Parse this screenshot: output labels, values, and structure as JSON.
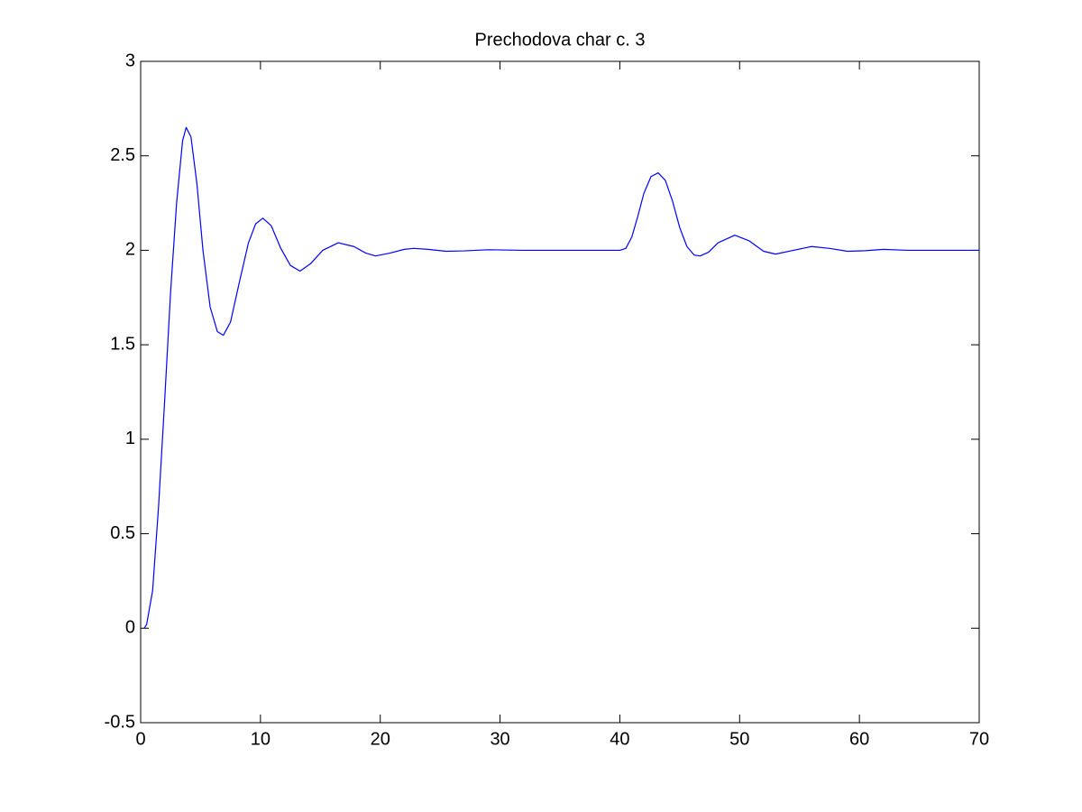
{
  "chart_data": {
    "type": "line",
    "title": "Prechodova char c. 3",
    "x": [
      0.3,
      0.5,
      1,
      1.5,
      2,
      2.5,
      3,
      3.5,
      3.8,
      4.2,
      4.7,
      5.2,
      5.8,
      6.4,
      6.9,
      7.5,
      8.2,
      9,
      9.6,
      10.2,
      10.9,
      11.7,
      12.5,
      13.3,
      14.2,
      15.2,
      16.5,
      17.8,
      18.8,
      19.6,
      20.8,
      22,
      22.8,
      24,
      25.5,
      27,
      29,
      32,
      36,
      40,
      40.5,
      41,
      41.5,
      42,
      42.6,
      43.2,
      43.8,
      44.4,
      45,
      45.6,
      46.2,
      46.7,
      47.4,
      48.2,
      49.6,
      50.8,
      52,
      53,
      54.5,
      56,
      57.5,
      59,
      60.5,
      62,
      64,
      67,
      70
    ],
    "series": [
      {
        "color": "#0000ff",
        "values": [
          0,
          0.02,
          0.2,
          0.65,
          1.2,
          1.78,
          2.25,
          2.58,
          2.65,
          2.6,
          2.35,
          2.0,
          1.7,
          1.57,
          1.55,
          1.62,
          1.82,
          2.04,
          2.14,
          2.17,
          2.13,
          2.01,
          1.92,
          1.89,
          1.93,
          2.0,
          2.04,
          2.02,
          1.985,
          1.97,
          1.985,
          2.005,
          2.01,
          2.005,
          1.995,
          1.997,
          2.003,
          2.0,
          2.0,
          2.0,
          2.01,
          2.07,
          2.18,
          2.3,
          2.39,
          2.41,
          2.37,
          2.26,
          2.12,
          2.02,
          1.975,
          1.97,
          1.99,
          2.04,
          2.08,
          2.05,
          1.995,
          1.98,
          2.0,
          2.02,
          2.01,
          1.995,
          1.998,
          2.005,
          2.0,
          2.0,
          2.0
        ]
      }
    ],
    "xlim": [
      0,
      70
    ],
    "xticks": [
      0,
      10,
      20,
      30,
      40,
      50,
      60,
      70
    ],
    "ylim": [
      -0.5,
      3
    ],
    "yticks": [
      -0.5,
      0,
      0.5,
      1,
      1.5,
      2,
      2.5,
      3
    ],
    "grid": false
  }
}
